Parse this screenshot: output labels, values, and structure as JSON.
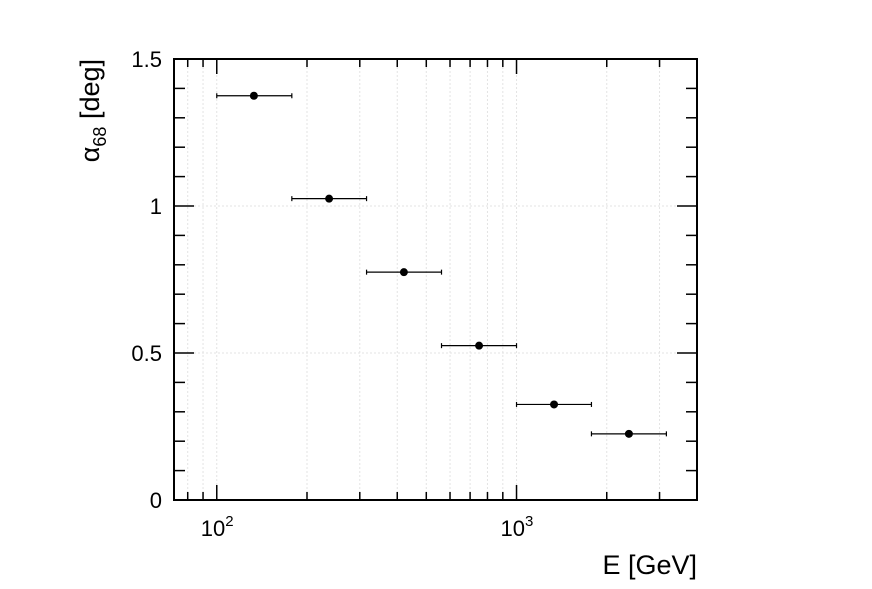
{
  "chart_data": {
    "type": "scatter",
    "xscale": "log",
    "xlim": [
      72,
      4000
    ],
    "ylim": [
      0,
      1.5
    ],
    "grid": true,
    "xlabel": "E [GeV]",
    "ylabel": "α68 [deg]",
    "ylabel_main": "α",
    "ylabel_sub": "68",
    "ylabel_rest": " [deg]",
    "x_ticks": [
      {
        "value": 100,
        "base": "10",
        "exp": "2"
      },
      {
        "value": 1000,
        "base": "10",
        "exp": "3"
      }
    ],
    "y_ticks": [
      {
        "value": 0,
        "label": "0"
      },
      {
        "value": 0.5,
        "label": "0.5"
      },
      {
        "value": 1,
        "label": "1"
      },
      {
        "value": 1.5,
        "label": "1.5"
      }
    ],
    "points": [
      {
        "x": 133,
        "xlow": 100,
        "xhigh": 178,
        "y": 1.375
      },
      {
        "x": 237,
        "xlow": 178,
        "xhigh": 316,
        "y": 1.025
      },
      {
        "x": 421,
        "xlow": 316,
        "xhigh": 562,
        "y": 0.775
      },
      {
        "x": 750,
        "xlow": 562,
        "xhigh": 1000,
        "y": 0.525
      },
      {
        "x": 1334,
        "xlow": 1000,
        "xhigh": 1778,
        "y": 0.325
      },
      {
        "x": 2371,
        "xlow": 1778,
        "xhigh": 3162,
        "y": 0.225
      }
    ]
  }
}
